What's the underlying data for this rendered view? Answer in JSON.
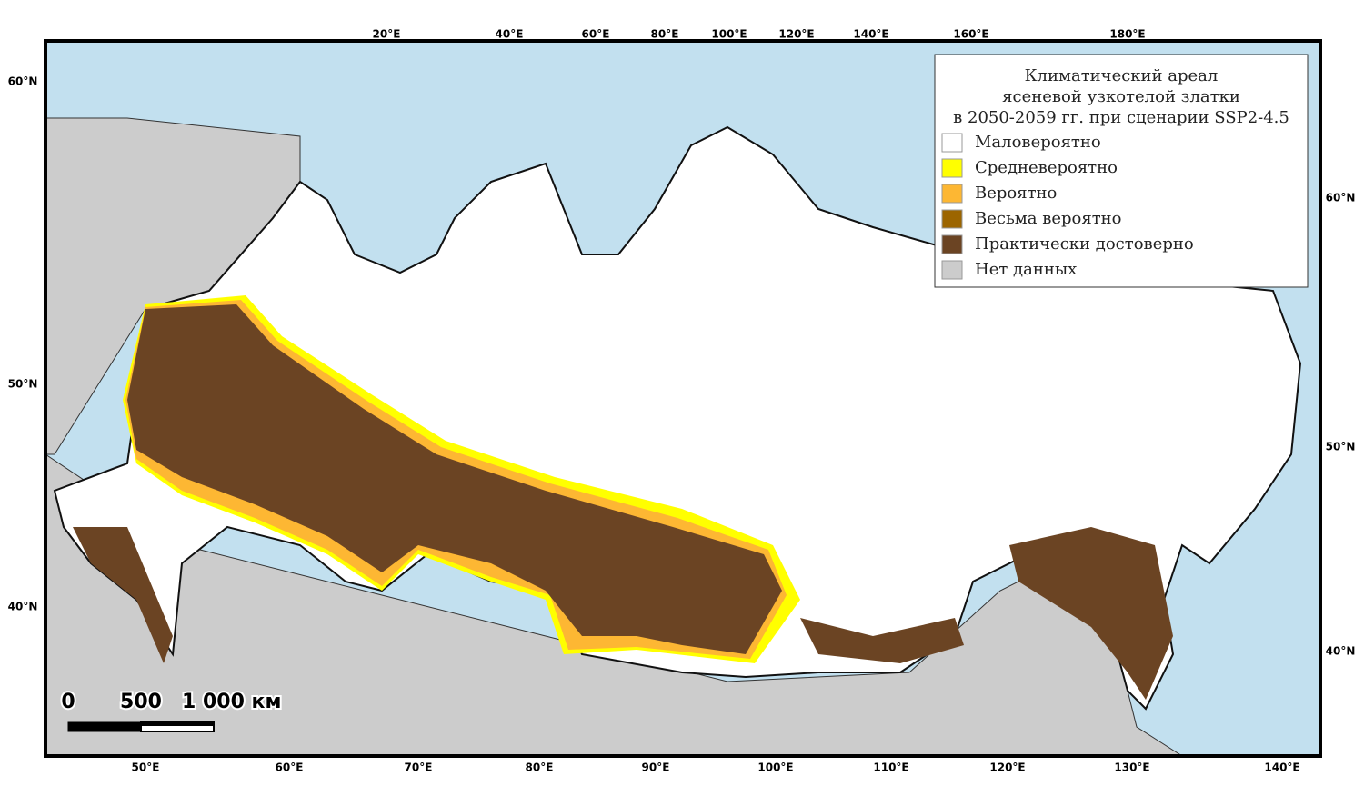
{
  "legend": {
    "title": [
      "Климатический ареал",
      "ясеневой узкотелой златки",
      "в 2050-2059 гг. при сценарии SSP2-4.5"
    ],
    "items": [
      {
        "label": "Маловероятно",
        "color": "#ffffff"
      },
      {
        "label": "Средневероятно",
        "color": "#ffff00"
      },
      {
        "label": "Вероятно",
        "color": "#fdb733"
      },
      {
        "label": "Весьма вероятно",
        "color": "#9c6500"
      },
      {
        "label": "Практически достоверно",
        "color": "#6b4423"
      },
      {
        "label": "Нет данных",
        "color": "#cccccc"
      }
    ]
  },
  "graticule": {
    "top": [
      "20°E",
      "40°E",
      "60°E",
      "80°E",
      "100°E",
      "120°E",
      "140°E",
      "160°E",
      "180°E"
    ],
    "bottom": [
      "50°E",
      "60°E",
      "70°E",
      "80°E",
      "90°E",
      "100°E",
      "110°E",
      "120°E",
      "130°E",
      "140°E"
    ],
    "left": [
      "60°N",
      "50°N",
      "40°N"
    ],
    "right": [
      "60°N",
      "50°N",
      "40°N"
    ]
  },
  "scale": [
    "0",
    "500",
    "1 000 км"
  ]
}
